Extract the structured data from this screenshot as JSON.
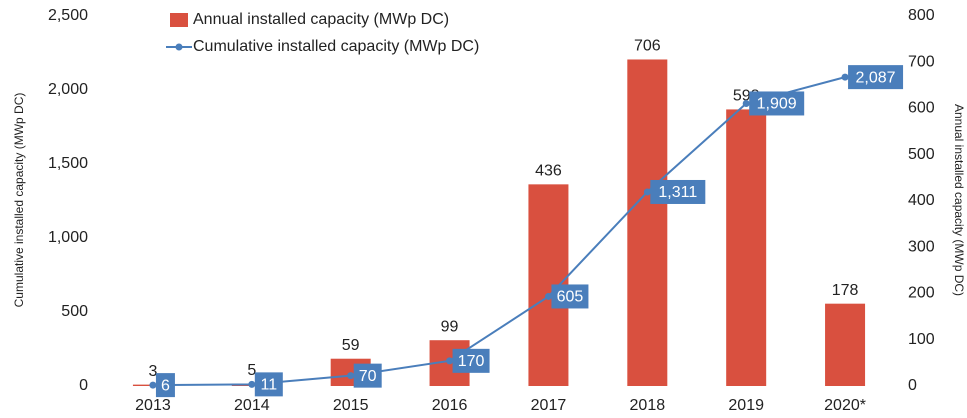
{
  "chart_data": {
    "type": "combo",
    "categories": [
      "2013",
      "2014",
      "2015",
      "2016",
      "2017",
      "2018",
      "2019",
      "2020*"
    ],
    "series": [
      {
        "name": "Annual installed capacity (MWp DC)",
        "type": "bar",
        "axis": "y2",
        "color": "#d9503f",
        "values": [
          3,
          5,
          59,
          99,
          436,
          706,
          598,
          178
        ]
      },
      {
        "name": "Cumulative installed capacity (MWp DC)",
        "type": "line",
        "axis": "y",
        "color": "#4a7ebb",
        "values": [
          6,
          11,
          70,
          170,
          605,
          1311,
          1909,
          2087
        ],
        "value_labels": [
          "6",
          "11",
          "70",
          "170",
          "605",
          "1,311",
          "1,909",
          "2,087"
        ]
      }
    ],
    "ylabel": "Cumulative installed capacity (MWp DC)",
    "y2label": "Annual installed capacity (MWp DC)",
    "ylim": [
      0,
      2500
    ],
    "yticks": [
      0,
      500,
      {
        "value": 1000,
        "label": "1,000"
      },
      {
        "value": 1500,
        "label": "1,500"
      },
      {
        "value": 2000,
        "label": "2,000"
      },
      {
        "value": 2500,
        "label": "2,500"
      }
    ],
    "y2lim": [
      0,
      800
    ],
    "y2ticks": [
      0,
      100,
      200,
      300,
      400,
      500,
      600,
      700,
      800
    ],
    "grid": false,
    "legend": "top"
  }
}
